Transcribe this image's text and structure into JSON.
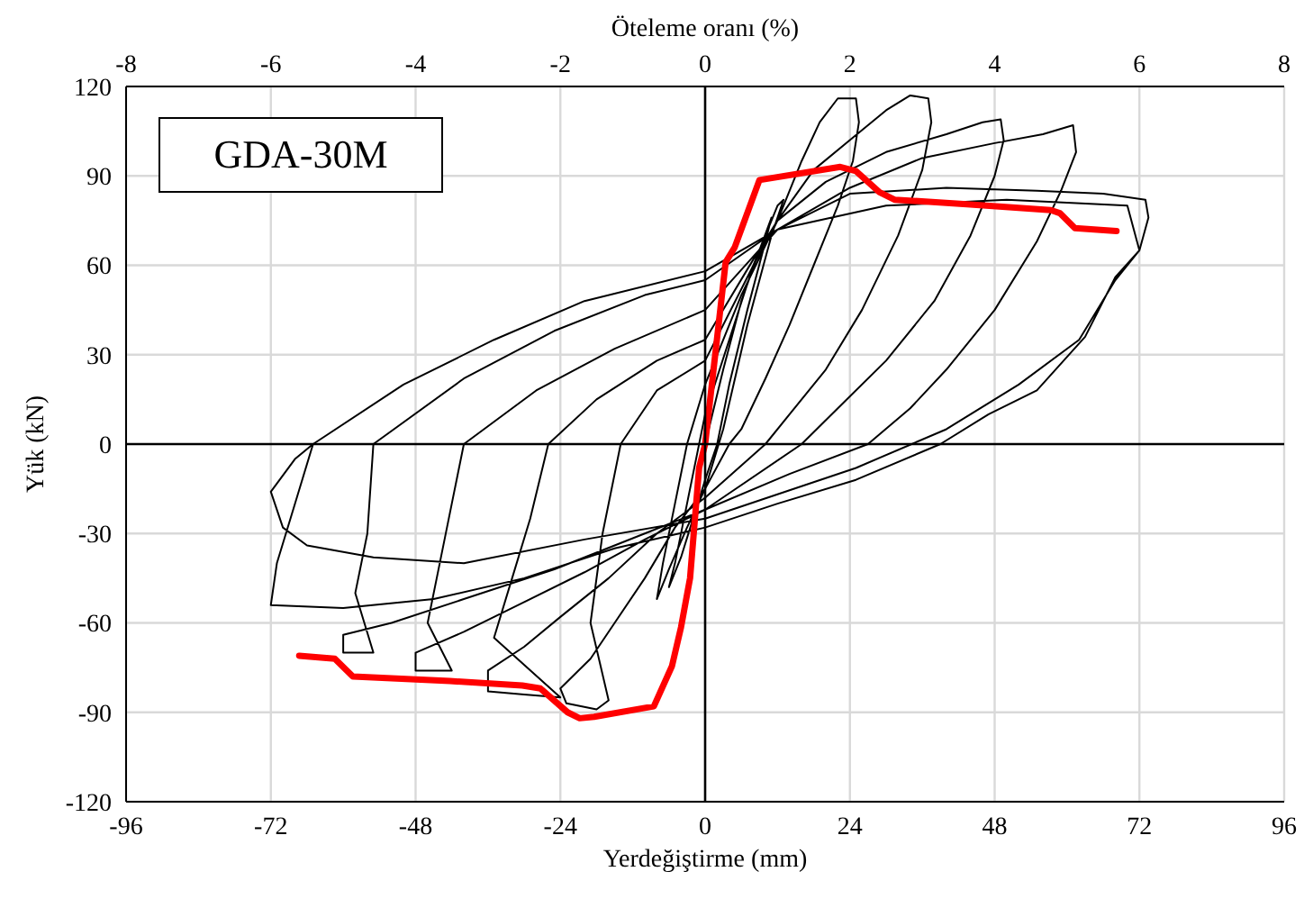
{
  "chart_data": {
    "type": "line",
    "xlabel": "Yerdeğiştirme (mm)",
    "ylabel": "Yük (kN)",
    "x2label": "Öteleme oranı (%)",
    "annotations": [
      "GDA-30M"
    ],
    "xlim": [
      -96,
      96
    ],
    "xticks": [
      -96,
      -72,
      -48,
      -24,
      0,
      24,
      48,
      72,
      96
    ],
    "x2lim": [
      -8,
      8
    ],
    "x2ticks": [
      -8,
      -6,
      -4,
      -2,
      0,
      2,
      4,
      6,
      8
    ],
    "ylim": [
      -120,
      120
    ],
    "yticks": [
      -120,
      -90,
      -60,
      -30,
      0,
      30,
      60,
      90,
      120
    ],
    "grid": true,
    "series": [
      {
        "color": "#000000",
        "x": [
          0,
          3,
          6,
          9,
          11,
          10,
          7,
          4,
          2,
          0,
          -2,
          -4,
          -6,
          -5,
          -3,
          -1,
          0,
          4,
          8,
          12,
          13,
          11,
          7,
          3,
          0,
          -3,
          -6,
          -8,
          -7,
          -5,
          -3,
          0,
          6,
          12,
          16,
          19,
          22,
          25,
          25.5,
          24.5,
          22,
          18,
          14,
          10,
          6,
          4,
          0,
          -5,
          -10,
          -15,
          -19,
          -24,
          -23,
          -18,
          -16,
          -19,
          -17,
          -14,
          -8,
          0,
          8,
          12,
          18,
          24,
          30,
          34,
          37,
          37.5,
          36,
          32,
          26,
          20,
          14,
          10,
          0,
          -8,
          -16,
          -24,
          -30,
          -36,
          -36,
          -30,
          -24,
          -35,
          -32,
          -29,
          -26,
          -18,
          -8,
          0,
          8,
          12,
          20,
          30,
          40,
          46,
          49,
          49.5,
          48,
          44,
          38,
          30,
          22,
          16,
          0,
          -10,
          -20,
          -30,
          -40,
          -48,
          -48,
          -42,
          -46,
          -44,
          -42,
          -40,
          -28,
          -15,
          0,
          12,
          24,
          36,
          48,
          56,
          61,
          61.5,
          59,
          55,
          48,
          40,
          34,
          27,
          14,
          0,
          -10,
          -25,
          -40,
          -52,
          -60,
          -60,
          -55,
          -58,
          -56,
          -55,
          -40,
          -25,
          -10,
          0,
          12,
          24,
          40,
          55,
          66,
          73,
          73.5,
          72,
          68,
          63,
          55,
          47,
          39,
          25,
          12,
          0,
          -15,
          -30,
          -45,
          -60,
          -72,
          -71,
          -68,
          -65,
          -50,
          -35,
          -20,
          0,
          12,
          30,
          50,
          70,
          72,
          68,
          62,
          52,
          40,
          25,
          0,
          -20,
          -40,
          -55,
          -66,
          -70,
          -72,
          -68,
          -65
        ],
        "values": [
          0,
          25,
          48,
          65,
          76,
          68,
          45,
          20,
          0,
          -12,
          -25,
          -38,
          -48,
          -40,
          -20,
          0,
          10,
          35,
          60,
          80,
          82,
          70,
          40,
          5,
          -15,
          -28,
          -42,
          -52,
          -40,
          -20,
          0,
          20,
          50,
          75,
          95,
          108,
          116,
          116,
          108,
          95,
          80,
          60,
          40,
          22,
          5,
          0,
          -15,
          -28,
          -45,
          -60,
          -72,
          -82,
          -87,
          -89,
          -86,
          -60,
          -30,
          0,
          18,
          28,
          60,
          75,
          92,
          102,
          112,
          117,
          116,
          108,
          92,
          70,
          45,
          25,
          10,
          0,
          -18,
          -30,
          -45,
          -58,
          -68,
          -76,
          -83,
          -84,
          -85,
          -65,
          -45,
          -25,
          0,
          15,
          28,
          35,
          62,
          75,
          88,
          98,
          104,
          108,
          109,
          102,
          90,
          70,
          48,
          28,
          12,
          0,
          -22,
          -32,
          -43,
          -53,
          -63,
          -70,
          -76,
          -76,
          -60,
          -40,
          -20,
          0,
          18,
          32,
          45,
          72,
          86,
          96,
          101,
          104,
          107,
          98,
          85,
          68,
          45,
          25,
          12,
          0,
          -10,
          -22,
          -30,
          -42,
          -52,
          -60,
          -64,
          -70,
          -70,
          -50,
          -30,
          0,
          22,
          38,
          50,
          55,
          72,
          84,
          86,
          85,
          84,
          82,
          76,
          65,
          56,
          36,
          18,
          10,
          0,
          -12,
          -20,
          -28,
          -35,
          -45,
          -52,
          -55,
          -54,
          -40,
          -20,
          0,
          20,
          35,
          48,
          58,
          72,
          80,
          82,
          80,
          65,
          55,
          35,
          20,
          5,
          -8,
          -25,
          -32,
          -40,
          -38,
          -34,
          -28,
          -16,
          -5,
          0
        ]
      },
      {
        "color": "#ff0000",
        "x": [
          -67.3,
          -61.4,
          -58.4,
          -42.3,
          -30.3,
          -27.3,
          -22.8,
          -20.8,
          -18.4,
          -8.5,
          -5.5,
          -4,
          -2.5,
          -1,
          0,
          3.4,
          4.9,
          9,
          22.4,
          25,
          28.9,
          31.4,
          43.4,
          57.3,
          58.8,
          61.3,
          68.2
        ],
        "values": [
          -71,
          -72,
          -78,
          -79.5,
          -81,
          -82,
          -90,
          -92,
          -91.5,
          -88,
          -74.5,
          -61.5,
          -45,
          -8,
          0,
          61,
          66,
          88.6,
          93,
          91.6,
          84.5,
          82,
          80.5,
          78.5,
          77.5,
          72.5,
          71.5
        ]
      }
    ]
  }
}
